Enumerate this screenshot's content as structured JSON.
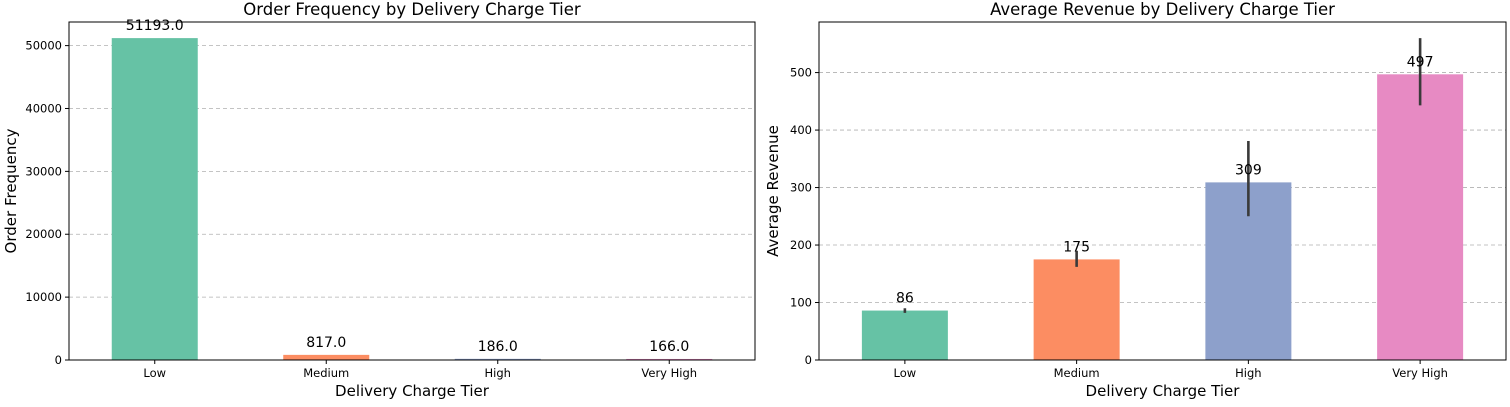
{
  "chart_data": [
    {
      "type": "bar",
      "title": "Order Frequency by Delivery Charge Tier",
      "xlabel": "Delivery Charge Tier",
      "ylabel": "Order Frequency",
      "categories": [
        "Low",
        "Medium",
        "High",
        "Very High"
      ],
      "values": [
        51193.0,
        817.0,
        186.0,
        166.0
      ],
      "value_labels": [
        "51193.0",
        "817.0",
        "186.0",
        "166.0"
      ],
      "colors": [
        "#66c2a5",
        "#fc8d62",
        "#8da0cb",
        "#e78ac3"
      ],
      "ylim": [
        0,
        53754
      ],
      "yticks": [
        0,
        10000,
        20000,
        30000,
        40000,
        50000
      ],
      "ytick_labels": [
        "0",
        "10000",
        "20000",
        "30000",
        "40000",
        "50000"
      ],
      "grid": "y dashed"
    },
    {
      "type": "bar",
      "title": "Average Revenue by Delivery Charge Tier",
      "xlabel": "Delivery Charge Tier",
      "ylabel": "Average Revenue",
      "categories": [
        "Low",
        "Medium",
        "High",
        "Very High"
      ],
      "values": [
        86,
        175,
        309,
        497
      ],
      "value_labels": [
        "86",
        "175",
        "309",
        "497"
      ],
      "error_low": [
        82,
        162,
        250,
        443
      ],
      "error_high": [
        90,
        190,
        381,
        560
      ],
      "colors": [
        "#66c2a5",
        "#fc8d62",
        "#8da0cb",
        "#e78ac3"
      ],
      "ylim": [
        0,
        588
      ],
      "yticks": [
        0,
        100,
        200,
        300,
        400,
        500
      ],
      "ytick_labels": [
        "0",
        "100",
        "200",
        "300",
        "400",
        "500"
      ],
      "grid": "y dashed"
    }
  ]
}
